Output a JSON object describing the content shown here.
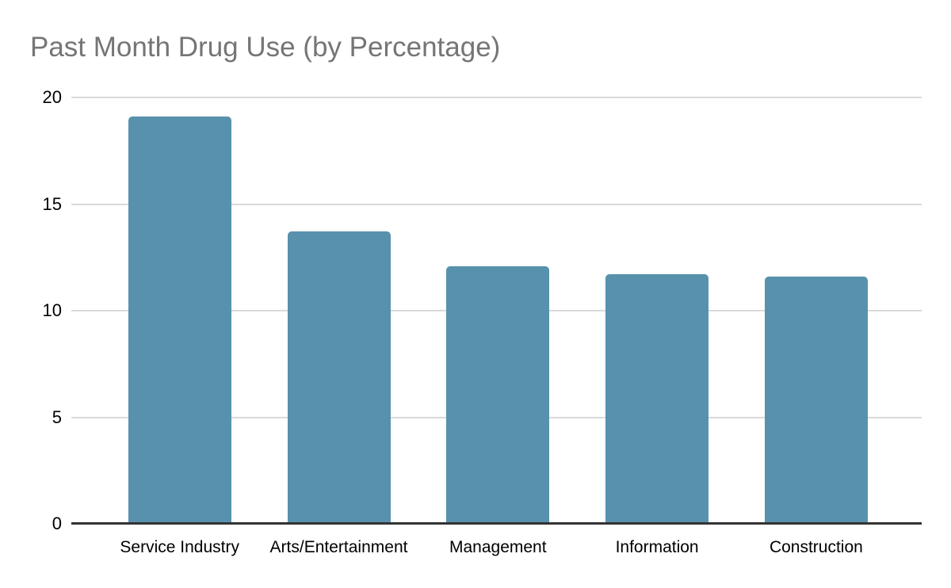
{
  "title": "Past Month Drug Use (by Percentage)",
  "chart_data": {
    "type": "bar",
    "title": "Past Month Drug Use (by Percentage)",
    "categories": [
      "Service Industry",
      "Arts/Entertainment",
      "Management",
      "Information",
      "Construction"
    ],
    "values": [
      19.1,
      13.7,
      12.1,
      11.7,
      11.6
    ],
    "xlabel": "",
    "ylabel": "",
    "ylim": [
      0,
      20
    ],
    "yticks": [
      0,
      5,
      10,
      15,
      20
    ],
    "grid": true,
    "legend_position": "none",
    "colors": {
      "bar": "#5891ad",
      "title_text": "#757575",
      "gridline": "#d9d9d9",
      "axis_line": "#333333",
      "tick_label": "#000000",
      "background": "#ffffff"
    }
  }
}
